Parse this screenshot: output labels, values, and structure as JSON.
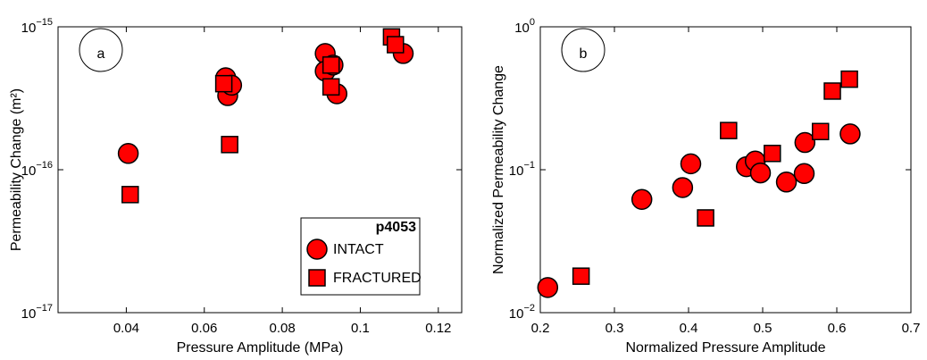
{
  "chart_data": [
    {
      "type": "scatter",
      "panel_label": "a",
      "xlabel": "Pressure Amplitude (MPa)",
      "ylabel": "Permeability Change (m²)",
      "xlim": [
        0.0225,
        0.126
      ],
      "xticks": [
        0.04,
        0.06,
        0.08,
        0.1,
        0.12
      ],
      "ylim": [
        1e-17,
        1e-15
      ],
      "yscale": "log",
      "yticks": [
        {
          "value": 1e-17,
          "label": "10",
          "exponent": "−17"
        },
        {
          "value": 1e-16,
          "label": "10",
          "exponent": "−16"
        },
        {
          "value": 1e-15,
          "label": "10",
          "exponent": "−15"
        }
      ],
      "legend_title": "p4053",
      "legend": "lower right",
      "series": [
        {
          "name": "INTACT",
          "marker": "circle",
          "color": "#ff0000",
          "x": [
            0.0405,
            0.0655,
            0.066,
            0.067,
            0.091,
            0.091,
            0.093,
            0.094,
            0.111
          ],
          "values": [
            1.3e-16,
            4.4e-16,
            3.3e-16,
            3.9e-16,
            6.5e-16,
            4.9e-16,
            5.4e-16,
            3.4e-16,
            6.5e-16
          ]
        },
        {
          "name": "FRACTURED",
          "marker": "square",
          "color": "#ff0000",
          "x": [
            0.041,
            0.065,
            0.0665,
            0.0925,
            0.0925,
            0.108,
            0.109
          ],
          "values": [
            6.7e-17,
            4e-16,
            1.5e-16,
            5.4e-16,
            3.8e-16,
            8.5e-16,
            7.5e-16
          ]
        }
      ]
    },
    {
      "type": "scatter",
      "panel_label": "b",
      "xlabel": "Normalized Pressure Amplitude",
      "ylabel": "Normalized Permeability Change",
      "xlim": [
        0.2,
        0.7
      ],
      "xticks": [
        0.2,
        0.3,
        0.4,
        0.5,
        0.6,
        0.7
      ],
      "ylim": [
        0.01,
        1
      ],
      "yscale": "log",
      "yticks": [
        {
          "value": 0.01,
          "label": "10",
          "exponent": "−2"
        },
        {
          "value": 0.1,
          "label": "10",
          "exponent": "−1"
        },
        {
          "value": 1,
          "label": "10",
          "exponent": "0"
        }
      ],
      "series": [
        {
          "marker": "circle",
          "color": "#ff0000",
          "x": [
            0.21,
            0.337,
            0.392,
            0.403,
            0.478,
            0.49,
            0.497,
            0.532,
            0.556,
            0.557,
            0.618
          ],
          "values": [
            0.015,
            0.062,
            0.075,
            0.11,
            0.105,
            0.115,
            0.095,
            0.082,
            0.094,
            0.155,
            0.178
          ]
        },
        {
          "marker": "square",
          "color": "#ff0000",
          "x": [
            0.255,
            0.423,
            0.454,
            0.513,
            0.578,
            0.594,
            0.617
          ],
          "values": [
            0.018,
            0.046,
            0.188,
            0.13,
            0.185,
            0.355,
            0.43
          ]
        }
      ]
    }
  ]
}
